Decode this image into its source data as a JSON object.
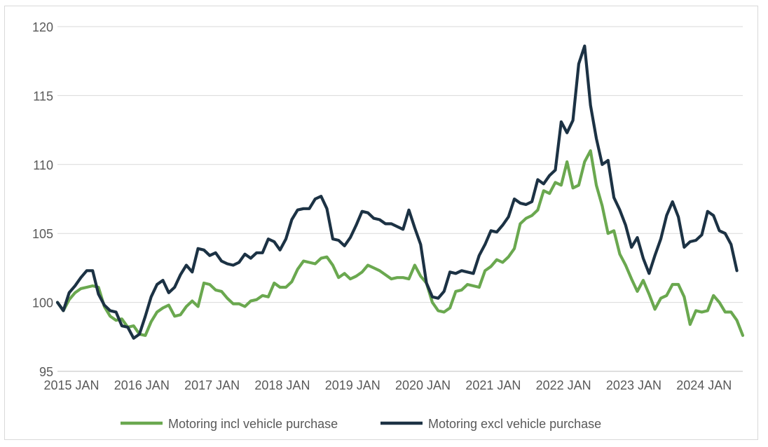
{
  "chart_data": {
    "type": "line",
    "title": "",
    "xlabel": "",
    "ylabel": "",
    "ylim": [
      95,
      120
    ],
    "yticks": [
      95,
      100,
      105,
      110,
      115,
      120
    ],
    "grid": true,
    "legend_position": "bottom",
    "x_tick_labels": [
      "2015 JAN",
      "2016 JAN",
      "2017 JAN",
      "2018 JAN",
      "2019 JAN",
      "2020 JAN",
      "2021 JAN",
      "2022 JAN",
      "2023 JAN",
      "2024 JAN"
    ],
    "x_start": "2015-01",
    "series": [
      {
        "name": "Motoring incl vehicle purchase",
        "color": "#6aa84f",
        "values": [
          100.0,
          99.4,
          100.2,
          100.7,
          101.0,
          101.1,
          101.2,
          101.1,
          99.7,
          99.0,
          98.7,
          98.8,
          98.2,
          98.3,
          97.7,
          97.6,
          98.6,
          99.3,
          99.6,
          99.8,
          99.0,
          99.1,
          99.7,
          100.1,
          99.7,
          101.4,
          101.3,
          100.9,
          100.8,
          100.3,
          99.9,
          99.9,
          99.7,
          100.1,
          100.2,
          100.5,
          100.4,
          101.4,
          101.1,
          101.1,
          101.5,
          102.4,
          103.0,
          102.9,
          102.8,
          103.2,
          103.3,
          102.7,
          101.8,
          102.1,
          101.7,
          101.9,
          102.2,
          102.7,
          102.5,
          102.3,
          102.0,
          101.7,
          101.8,
          101.8,
          101.7,
          102.7,
          101.9,
          101.4,
          100.0,
          99.4,
          99.3,
          99.6,
          100.8,
          100.9,
          101.3,
          101.2,
          101.1,
          102.3,
          102.6,
          103.1,
          102.9,
          103.3,
          103.9,
          105.7,
          106.1,
          106.3,
          106.7,
          108.1,
          107.9,
          108.7,
          108.5,
          110.2,
          108.3,
          108.5,
          110.2,
          111.0,
          108.5,
          107.0,
          105.0,
          105.2,
          103.5,
          102.7,
          101.7,
          100.8,
          101.6,
          100.6,
          99.5,
          100.3,
          100.5,
          101.3,
          101.3,
          100.4,
          98.4,
          99.4,
          99.3,
          99.4,
          100.5,
          100.0,
          99.3,
          99.3,
          98.7,
          97.6
        ]
      },
      {
        "name": "Motoring excl vehicle purchase",
        "color": "#1c3244",
        "values": [
          100.0,
          99.4,
          100.7,
          101.2,
          101.8,
          102.3,
          102.3,
          100.6,
          99.8,
          99.4,
          99.3,
          98.3,
          98.2,
          97.4,
          97.7,
          99.0,
          100.4,
          101.3,
          101.6,
          100.7,
          101.1,
          102.0,
          102.7,
          102.2,
          103.9,
          103.8,
          103.4,
          103.6,
          103.0,
          102.8,
          102.7,
          102.9,
          103.5,
          103.2,
          103.6,
          103.6,
          104.6,
          104.4,
          103.8,
          104.6,
          106.0,
          106.7,
          106.8,
          106.8,
          107.5,
          107.7,
          106.8,
          104.6,
          104.5,
          104.1,
          104.7,
          105.6,
          106.6,
          106.5,
          106.1,
          106.0,
          105.7,
          105.7,
          105.5,
          105.3,
          106.7,
          105.4,
          104.2,
          101.4,
          100.4,
          100.3,
          100.8,
          102.2,
          102.1,
          102.3,
          102.2,
          102.1,
          103.4,
          104.2,
          105.2,
          105.1,
          105.6,
          106.2,
          107.5,
          107.2,
          107.1,
          107.3,
          108.9,
          108.6,
          109.2,
          109.6,
          113.1,
          112.3,
          113.2,
          117.3,
          118.6,
          114.3,
          111.9,
          110.0,
          110.3,
          107.6,
          106.7,
          105.6,
          104.0,
          104.7,
          103.2,
          102.1,
          103.4,
          104.6,
          106.3,
          107.3,
          106.2,
          104.0,
          104.4,
          104.5,
          104.9,
          106.6,
          106.3,
          105.2,
          105.0,
          104.2,
          102.3
        ]
      }
    ]
  }
}
